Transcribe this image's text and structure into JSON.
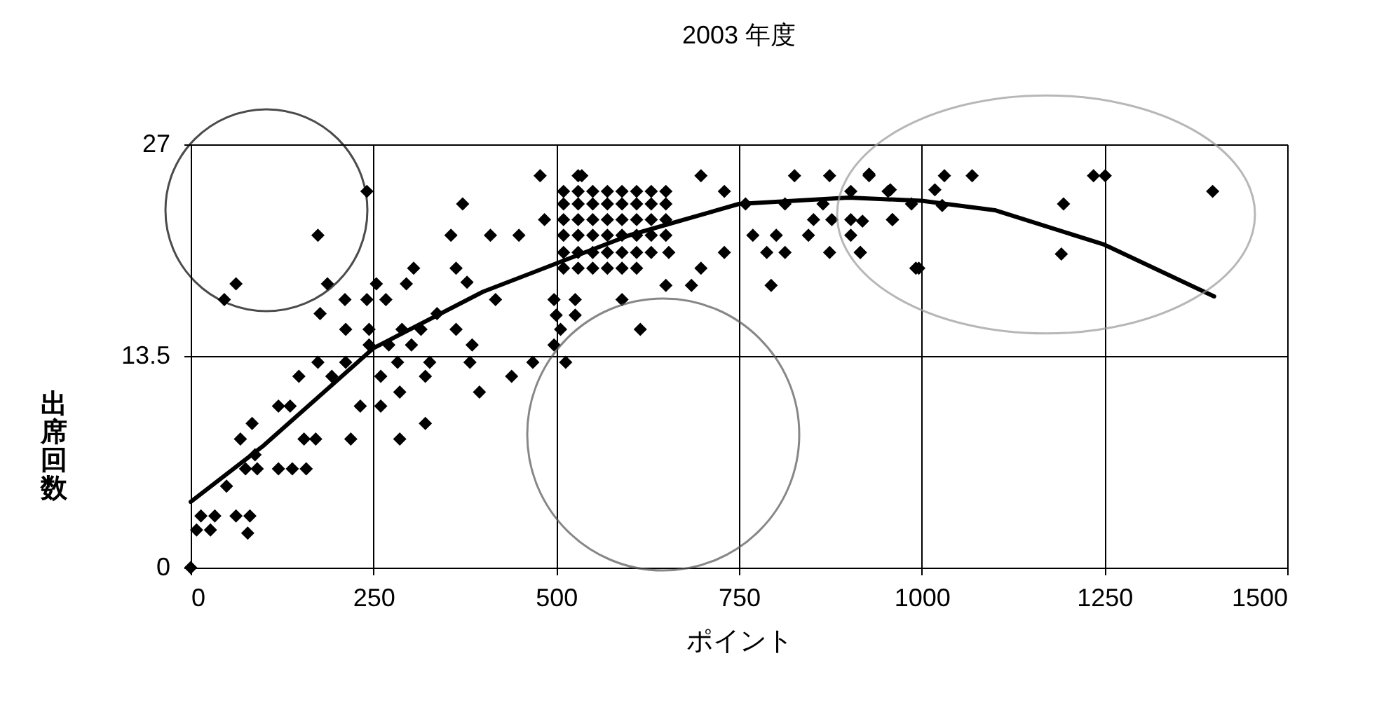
{
  "chart_data": {
    "type": "scatter",
    "title": "2003 年度",
    "xlabel": "ポイント",
    "ylabel": "出席回数",
    "xlim": [
      0,
      1500
    ],
    "xticks": [
      0,
      250,
      500,
      750,
      1000,
      1250,
      1500
    ],
    "ylim": [
      0,
      27
    ],
    "yticks": [
      0,
      13.5,
      27
    ],
    "grid": true,
    "legend": false,
    "series": [
      {
        "color": "#000000",
        "marker": "diamond",
        "x": [
          0,
          241,
          174,
          62,
          46,
          187,
          177,
          211,
          254,
          241,
          267,
          305,
          295,
          372,
          356,
          363,
          410,
          449,
          478,
          484,
          212,
          244,
          289,
          315,
          337,
          363,
          385,
          382,
          417,
          378,
          244,
          212,
          174,
          148,
          193,
          260,
          283,
          327,
          321,
          468,
          439,
          395,
          232,
          260,
          286,
          321,
          286,
          219,
          155,
          171,
          120,
          136,
          84,
          68,
          88,
          75,
          91,
          120,
          139,
          158,
          49,
          14,
          33,
          62,
          81,
          8,
          27,
          78,
          271,
          302,
          535,
          698,
          826,
          874,
          928,
          615,
          794,
          960,
          992,
          650,
          685,
          590,
          506,
          497,
          513,
          500,
          526,
          497,
          526,
          788,
          813,
          801,
          845,
          874,
          916,
          769,
          730,
          698,
          654,
          852,
          877,
          903,
          954,
          903,
          730,
          759,
          813,
          865,
          510,
          510,
          510,
          510,
          510,
          510,
          530,
          530,
          530,
          530,
          530,
          530,
          530,
          550,
          550,
          550,
          550,
          550,
          550,
          570,
          570,
          570,
          570,
          570,
          570,
          590,
          590,
          590,
          590,
          590,
          590,
          610,
          610,
          610,
          610,
          610,
          610,
          630,
          630,
          630,
          630,
          630,
          650,
          650,
          650,
          650,
          928,
          1031,
          1069,
          1235,
          1251,
          1398,
          1194,
          1191,
          996,
          1018,
          1028,
          957,
          986,
          960,
          916,
          903,
          919
        ],
        "values": [
          0,
          24.0,
          21.2,
          18.1,
          17.1,
          18.1,
          16.2,
          17.1,
          18.1,
          17.1,
          17.1,
          19.1,
          18.1,
          23.2,
          21.2,
          19.1,
          21.2,
          21.2,
          25.0,
          22.2,
          15.2,
          15.2,
          15.2,
          15.2,
          16.2,
          15.2,
          14.2,
          13.1,
          17.1,
          18.2,
          14.2,
          13.1,
          13.1,
          12.2,
          12.2,
          12.2,
          13.1,
          13.1,
          12.2,
          13.1,
          12.2,
          11.2,
          10.3,
          10.3,
          11.2,
          9.2,
          8.2,
          8.2,
          8.2,
          8.2,
          10.3,
          10.3,
          9.2,
          8.2,
          7.2,
          6.3,
          6.3,
          6.3,
          6.3,
          6.3,
          5.2,
          3.3,
          3.3,
          3.3,
          3.3,
          2.4,
          2.4,
          2.2,
          14.2,
          14.2,
          25.0,
          25.0,
          25.0,
          25.0,
          25.0,
          15.2,
          18.0,
          22.2,
          19.1,
          18.0,
          18.0,
          17.1,
          15.2,
          14.2,
          13.1,
          16.1,
          16.1,
          17.1,
          17.1,
          20.1,
          20.1,
          21.2,
          21.2,
          20.1,
          20.1,
          21.2,
          20.1,
          19.1,
          20.1,
          22.2,
          22.2,
          22.2,
          24.0,
          24.0,
          24.0,
          23.2,
          23.2,
          23.2,
          19.1,
          20.1,
          21.2,
          22.2,
          23.2,
          24.0,
          19.1,
          20.1,
          21.2,
          22.2,
          23.2,
          24.0,
          25.0,
          19.1,
          20.1,
          21.2,
          22.2,
          23.2,
          24.0,
          19.1,
          20.1,
          21.2,
          22.2,
          23.2,
          24.0,
          19.1,
          20.1,
          21.2,
          22.2,
          23.2,
          24.0,
          19.1,
          20.1,
          21.2,
          22.2,
          23.2,
          24.0,
          20.1,
          21.2,
          22.2,
          23.2,
          24.0,
          21.2,
          22.2,
          23.2,
          24.0,
          25.1,
          25.0,
          25.0,
          25.0,
          25.0,
          24.0,
          23.2,
          20.0,
          19.1,
          24.1,
          23.1,
          24.1,
          23.2,
          22.2,
          20.1,
          21.2,
          22.1
        ]
      },
      {
        "type": "line",
        "color": "#000000",
        "marker": "none",
        "line_style": "solid",
        "x": [
          0,
          100,
          250,
          400,
          500,
          600,
          750,
          900,
          1000,
          1100,
          1250,
          1400
        ],
        "values": [
          4.2,
          7.8,
          14.0,
          17.6,
          19.4,
          21.2,
          23.2,
          23.6,
          23.4,
          22.8,
          20.6,
          17.3
        ]
      }
    ]
  }
}
